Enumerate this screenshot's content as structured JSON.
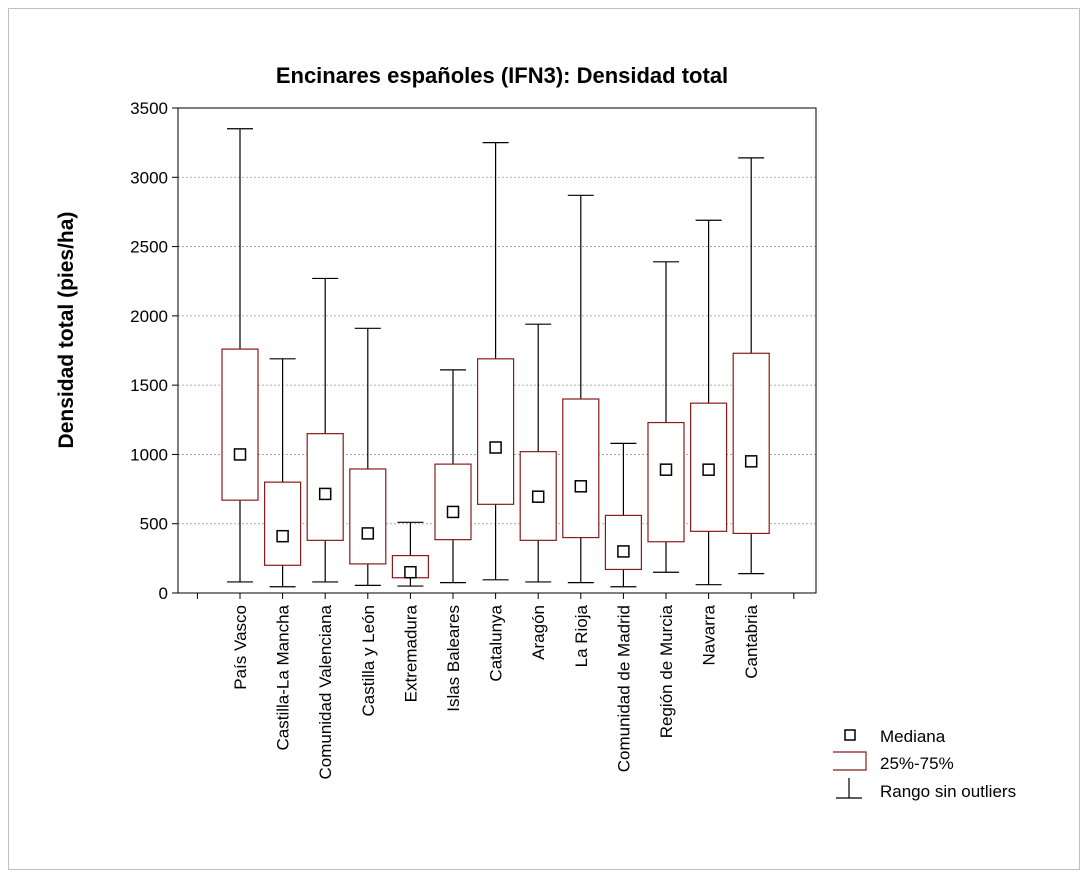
{
  "chart_data": {
    "type": "boxplot",
    "title": "Encinares españoles (IFN3): Densidad total",
    "ylabel": "Densidad total  (pies/ha)",
    "xlabel": "",
    "ylim": [
      0,
      3500
    ],
    "yticks": [
      0,
      500,
      1000,
      1500,
      2000,
      2500,
      3000,
      3500
    ],
    "grid": true,
    "legend": {
      "position": "bottom-right",
      "median": "Mediana",
      "box": "25%-75%",
      "whisker": "Rango sin outliers"
    },
    "colors": {
      "box": "#8b1a1a",
      "whisker": "#000000",
      "grid": "#999999"
    },
    "categories": [
      "País Vasco",
      "Castilla-La Mancha",
      "Comunidad Valenciana",
      "Castilla y León",
      "Extremadura",
      "Islas Baleares",
      "Catalunya",
      "Aragón",
      "La Rioja",
      "Comunidad de Madrid",
      "Región de Murcia",
      "Navarra",
      "Cantabria"
    ],
    "median": [
      1000,
      410,
      715,
      430,
      150,
      585,
      1050,
      695,
      770,
      300,
      890,
      890,
      950
    ],
    "q1": [
      670,
      200,
      380,
      210,
      110,
      385,
      640,
      380,
      400,
      170,
      370,
      445,
      430
    ],
    "q3": [
      1760,
      800,
      1150,
      895,
      270,
      930,
      1690,
      1020,
      1400,
      560,
      1230,
      1370,
      1730
    ],
    "whisker_low": [
      80,
      45,
      80,
      55,
      50,
      75,
      95,
      80,
      75,
      45,
      150,
      60,
      140
    ],
    "whisker_high": [
      3350,
      1690,
      2270,
      1910,
      510,
      1610,
      3250,
      1940,
      2870,
      1080,
      2390,
      2690,
      3140
    ]
  }
}
